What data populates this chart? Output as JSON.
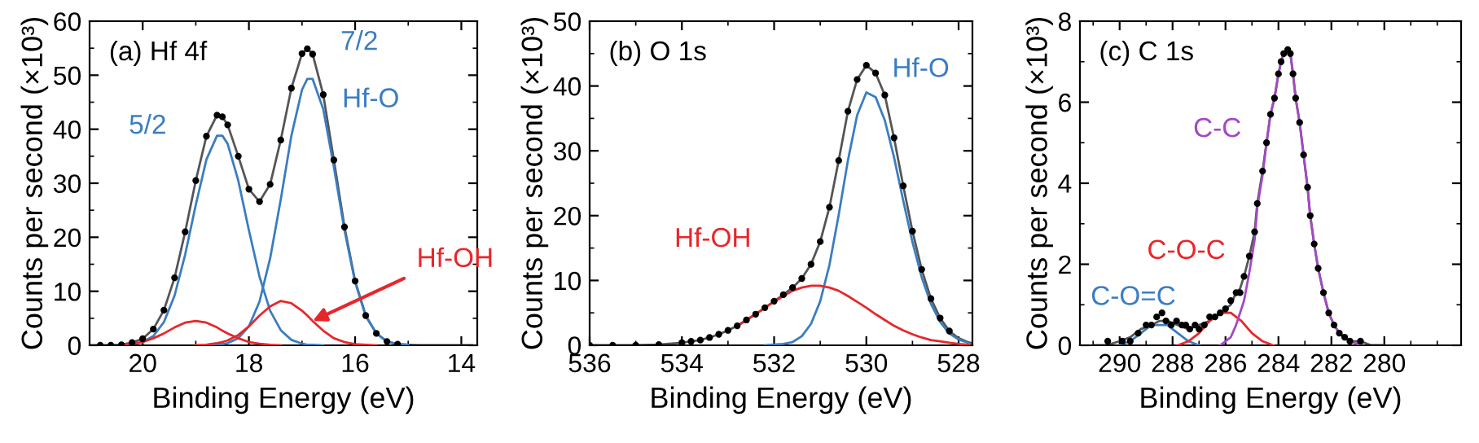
{
  "chart_data": [
    {
      "type": "line",
      "title": "(a) Hf 4f",
      "xlabel": "Binding Energy (eV)",
      "ylabel": "Counts per second (×10³)",
      "xlim": [
        21.0,
        13.7
      ],
      "ylim": [
        0,
        60
      ],
      "xticks": [
        20,
        18,
        16,
        14
      ],
      "yticks": [
        0,
        10,
        20,
        30,
        40,
        50,
        60
      ],
      "grid": false,
      "annotations": [
        {
          "text": "5/2",
          "x": 18.5,
          "y": 38.8
        },
        {
          "text": "7/2",
          "x": 16.9,
          "y": 49.3
        },
        {
          "text": "Hf-O",
          "x": 16.6,
          "y": 43.7
        },
        {
          "text": "Hf-OH",
          "x": 16.8,
          "y": 4.5
        }
      ],
      "series": [
        {
          "color": "#3a7dc1",
          "x": [
            18.8,
            18.6,
            18.5,
            18.4,
            18.2,
            18.0,
            17.8,
            17.6,
            17.4,
            17.2,
            17.0,
            16.9,
            16.8,
            16.6,
            16.4,
            16.2,
            16.0,
            15.8,
            15.6,
            15.4,
            15.2,
            15.0
          ],
          "values": [
            0,
            0.1,
            0.2,
            0.4,
            1.3,
            3.5,
            8.1,
            16.1,
            27.0,
            38.8,
            47.3,
            49.3,
            49.3,
            43.7,
            33.0,
            21.3,
            11.7,
            5.4,
            2.2,
            0.7,
            0.2,
            0.1
          ]
        },
        {
          "color": "#3a7dc1",
          "x": [
            20.2,
            20.0,
            19.8,
            19.6,
            19.4,
            19.2,
            19.0,
            18.8,
            18.6,
            18.5,
            18.4,
            18.2,
            18.0,
            17.8,
            17.6,
            17.4,
            17.2,
            17.0,
            16.9,
            16.8,
            16.6
          ],
          "values": [
            0.2,
            0.6,
            1.7,
            4.3,
            9.2,
            16.8,
            26.0,
            34.4,
            38.8,
            38.8,
            37.3,
            30.5,
            21.3,
            12.7,
            6.4,
            2.8,
            1.0,
            0.3,
            0.1,
            0.1,
            0
          ]
        },
        {
          "color": "#e8262a",
          "x": [
            19.0,
            18.8,
            18.6,
            18.5,
            18.4,
            18.2,
            18.0,
            17.8,
            17.6,
            17.4,
            17.2,
            17.0,
            16.9,
            16.8,
            16.6,
            16.4,
            16.2,
            16.0,
            15.8,
            15.6
          ],
          "values": [
            0,
            0.1,
            0.4,
            0.6,
            0.9,
            1.9,
            3.5,
            5.5,
            7.2,
            8.2,
            7.8,
            6.4,
            5.5,
            4.5,
            2.7,
            1.3,
            0.6,
            0.2,
            0.1,
            0
          ]
        },
        {
          "color": "#e8262a",
          "x": [
            20.4,
            20.2,
            20.0,
            19.8,
            19.6,
            19.4,
            19.2,
            19.0,
            18.8,
            18.6,
            18.5,
            18.4,
            18.2,
            18.0,
            17.8,
            17.6,
            17.4
          ],
          "values": [
            0.1,
            0.3,
            0.6,
            1.3,
            2.2,
            3.3,
            4.2,
            4.5,
            4.2,
            3.3,
            2.7,
            2.2,
            1.3,
            0.6,
            0.3,
            0.1,
            0
          ]
        },
        {
          "color": "#555555",
          "x": [
            21.0,
            20.8,
            20.6,
            20.4,
            20.2,
            20.0,
            19.8,
            19.6,
            19.4,
            19.2,
            19.0,
            18.8,
            18.6,
            18.5,
            18.4,
            18.2,
            18.0,
            17.8,
            17.6,
            17.4,
            17.2,
            17.0,
            16.9,
            16.8,
            16.6,
            16.4,
            16.2,
            16.0,
            15.8,
            15.6,
            15.4,
            15.2,
            15.0,
            14.8,
            14.6,
            14.4,
            14.2,
            14.0,
            13.8
          ],
          "values": [
            0,
            0,
            0,
            0.1,
            0.5,
            1.2,
            3.0,
            6.5,
            12.5,
            21.0,
            30.5,
            38.7,
            42.6,
            42.3,
            40.8,
            35.0,
            28.9,
            26.6,
            29.8,
            38.0,
            47.6,
            54.0,
            54.9,
            53.9,
            46.4,
            34.3,
            21.9,
            11.9,
            5.5,
            2.2,
            0.7,
            0.2,
            0.1,
            0,
            0,
            0,
            0,
            0,
            0
          ]
        },
        {
          "type": "scatter",
          "color": "#000000",
          "marker": "circle",
          "x": [
            20.8,
            20.6,
            20.4,
            20.2,
            20.0,
            19.8,
            19.6,
            19.4,
            19.2,
            19.0,
            18.8,
            18.6,
            18.5,
            18.4,
            18.2,
            18.0,
            17.8,
            17.6,
            17.4,
            17.2,
            17.0,
            16.9,
            16.8,
            16.6,
            16.4,
            16.2,
            16.0,
            15.8,
            15.6,
            15.4,
            15.2
          ],
          "values": [
            0,
            0,
            0.1,
            0.5,
            1.2,
            3.0,
            6.5,
            12.5,
            21.0,
            30.5,
            38.7,
            42.6,
            42.3,
            40.8,
            35.0,
            28.9,
            26.6,
            29.8,
            38.0,
            47.6,
            54.0,
            54.9,
            53.9,
            46.4,
            34.3,
            21.9,
            11.9,
            5.5,
            2.2,
            0.7,
            0.2
          ]
        }
      ]
    },
    {
      "type": "line",
      "title": "(b) O 1s",
      "xlabel": "Binding Energy (eV)",
      "ylabel": "Counts per second (×10³)",
      "xlim": [
        536,
        527.7
      ],
      "ylim": [
        0,
        50
      ],
      "xticks": [
        536,
        534,
        532,
        530,
        528
      ],
      "yticks": [
        0,
        10,
        20,
        30,
        40,
        50
      ],
      "grid": false,
      "annotations": [
        {
          "text": "Hf-O",
          "x": 529.8,
          "y": 38.3
        },
        {
          "text": "Hf-OH",
          "x": 532.2,
          "y": 5.8
        }
      ],
      "series": [
        {
          "color": "#3a7dc1",
          "x": [
            532.2,
            532.0,
            531.8,
            531.6,
            531.4,
            531.2,
            531.0,
            530.8,
            530.6,
            530.4,
            530.2,
            530.0,
            529.8,
            529.6,
            529.4,
            529.2,
            529.0,
            528.8,
            528.6,
            528.4,
            528.2,
            528.0,
            527.8
          ],
          "values": [
            0,
            0.1,
            0.2,
            0.5,
            1.4,
            3.3,
            6.8,
            12.4,
            20.1,
            28.5,
            35.5,
            39.0,
            38.3,
            34.7,
            29.0,
            22.3,
            15.9,
            10.5,
            6.4,
            3.6,
            1.8,
            0.9,
            0.4
          ]
        },
        {
          "color": "#e8262a",
          "x": [
            532.8,
            532.6,
            532.4,
            532.2,
            532.0,
            531.8,
            531.6,
            531.4,
            531.2,
            531.0,
            530.8,
            530.6,
            530.4,
            530.2,
            530.0,
            529.8,
            529.6,
            529.4,
            529.2,
            529.0,
            528.8,
            528.6,
            528.4,
            528.2,
            528.0,
            527.8
          ],
          "values": [
            3.0,
            3.9,
            4.8,
            5.8,
            6.7,
            7.6,
            8.4,
            8.9,
            9.2,
            9.2,
            8.9,
            8.4,
            7.6,
            6.7,
            5.8,
            4.8,
            3.9,
            3.0,
            2.3,
            1.7,
            1.2,
            0.8,
            0.6,
            0.4,
            0.2,
            0.1
          ]
        },
        {
          "color": "#555555",
          "x": [
            536,
            535.5,
            535,
            534.5,
            534,
            533.8,
            533.6,
            533.4,
            533.2,
            533.0,
            532.8,
            532.6,
            532.4,
            532.2,
            532.0,
            531.8,
            531.6,
            531.4,
            531.2,
            531.0,
            530.8,
            530.6,
            530.4,
            530.2,
            530.0,
            529.8,
            529.6,
            529.4,
            529.2,
            529.0,
            528.8,
            528.6,
            528.4,
            528.2,
            528.0,
            527.8,
            527.7
          ],
          "values": [
            0,
            0,
            0,
            0.1,
            0.4,
            0.6,
            0.8,
            1.2,
            1.7,
            2.3,
            3.0,
            3.9,
            4.8,
            5.8,
            6.8,
            7.8,
            8.9,
            10.3,
            12.5,
            16.0,
            21.3,
            28.5,
            36.1,
            41.0,
            43.2,
            42.0,
            38.6,
            32.0,
            24.6,
            17.6,
            11.7,
            7.2,
            4.2,
            2.2,
            1.1,
            0.5,
            0.3
          ]
        },
        {
          "type": "scatter",
          "color": "#000000",
          "marker": "circle",
          "x": [
            536,
            535.5,
            535,
            534.5,
            534,
            533.8,
            533.6,
            533.4,
            533.2,
            533.0,
            532.8,
            532.6,
            532.4,
            532.2,
            532.0,
            531.8,
            531.6,
            531.4,
            531.2,
            531.0,
            530.8,
            530.6,
            530.4,
            530.2,
            530.0,
            529.8,
            529.6,
            529.4,
            529.2,
            529.0,
            528.8,
            528.6,
            528.4,
            528.2
          ],
          "values": [
            0,
            0,
            0,
            0.1,
            0.4,
            0.6,
            0.8,
            1.2,
            1.7,
            2.3,
            3.0,
            3.9,
            4.8,
            5.8,
            6.8,
            7.8,
            8.9,
            10.3,
            12.5,
            16.0,
            21.3,
            28.5,
            36.1,
            41.0,
            43.2,
            42.0,
            38.6,
            32.0,
            24.6,
            17.6,
            11.7,
            7.2,
            4.2,
            2.2
          ]
        }
      ]
    },
    {
      "type": "line",
      "title": "(c) C 1s",
      "xlabel": "Binding Energy (eV)",
      "ylabel": "Counts per second (×10³)",
      "xlim": [
        291.5,
        277.1
      ],
      "ylim": [
        0,
        8
      ],
      "xticks": [
        290,
        288,
        286,
        284,
        282,
        280
      ],
      "yticks": [
        0,
        2,
        4,
        6,
        8
      ],
      "grid": false,
      "annotations": [
        {
          "text": "C-C",
          "x": 284.6,
          "y": 4.2
        },
        {
          "text": "C-O-C",
          "x": 286.2,
          "y": 0.8
        },
        {
          "text": "C-O=C",
          "x": 288.8,
          "y": 0.5
        }
      ],
      "series": [
        {
          "color": "#3a7dc1",
          "x": [
            290.0,
            289.6,
            289.2,
            288.8,
            288.5,
            288.2,
            287.8,
            287.4,
            287.0
          ],
          "values": [
            0,
            0.1,
            0.3,
            0.5,
            0.5,
            0.5,
            0.3,
            0.1,
            0
          ]
        },
        {
          "color": "#e8262a",
          "x": [
            287.8,
            287.4,
            287.0,
            286.6,
            286.2,
            285.8,
            285.4,
            285.0,
            284.6,
            284.2
          ],
          "values": [
            0,
            0.1,
            0.3,
            0.6,
            0.8,
            0.8,
            0.6,
            0.3,
            0.1,
            0
          ]
        },
        {
          "color": "#a349c3",
          "x": [
            286.2,
            286.0,
            285.8,
            285.6,
            285.45,
            285.3,
            285.1,
            284.9,
            284.8,
            284.6,
            284.45,
            284.3,
            284.15,
            284.0,
            283.9,
            283.8,
            283.65,
            283.55,
            283.45,
            283.35,
            283.2,
            283.05,
            282.9,
            282.8,
            282.65,
            282.5,
            282.3,
            282.1,
            281.9,
            281.7,
            281.5,
            281.3,
            280.9
          ],
          "values": [
            0,
            0.1,
            0.2,
            0.5,
            0.8,
            1.1,
            1.8,
            2.6,
            3.4,
            4.2,
            5.0,
            5.7,
            6.1,
            6.7,
            7.0,
            7.2,
            7.3,
            7.2,
            6.7,
            6.1,
            5.5,
            4.7,
            3.9,
            3.2,
            2.5,
            1.9,
            1.3,
            0.8,
            0.5,
            0.3,
            0.2,
            0.1,
            0
          ]
        },
        {
          "color": "#555555",
          "x": [
            291.0,
            290.5,
            290.0,
            289.6,
            289.2,
            288.8,
            288.5,
            288.2,
            287.8,
            287.4,
            287.0,
            286.6,
            286.2,
            285.8,
            285.6,
            285.45,
            285.3,
            285.1,
            284.9,
            284.8,
            284.6,
            284.45,
            284.3,
            284.15,
            284.0,
            283.9,
            283.8,
            283.65,
            283.55,
            283.45,
            283.35,
            283.2,
            283.05,
            282.9,
            282.8,
            282.65,
            282.5,
            282.3,
            282.1,
            281.9,
            281.7,
            281.5,
            281.3,
            280.9,
            280.5,
            280.0
          ],
          "values": [
            0,
            0,
            0.1,
            0.2,
            0.4,
            0.5,
            0.6,
            0.6,
            0.5,
            0.4,
            0.5,
            0.6,
            0.8,
            1.0,
            1.3,
            1.4,
            1.7,
            2.2,
            2.8,
            3.5,
            4.3,
            5.0,
            5.7,
            6.1,
            6.7,
            7.0,
            7.2,
            7.3,
            7.2,
            6.7,
            6.1,
            5.5,
            4.7,
            3.9,
            3.2,
            2.5,
            1.9,
            1.3,
            0.8,
            0.5,
            0.3,
            0.2,
            0.1,
            0.1,
            0,
            0
          ]
        },
        {
          "type": "scatter",
          "color": "#000000",
          "marker": "circle",
          "x": [
            290.45,
            289.9,
            289.6,
            289.3,
            289.0,
            288.8,
            288.6,
            288.4,
            288.25,
            288.05,
            287.85,
            287.65,
            287.5,
            287.35,
            287.15,
            287.0,
            286.8,
            286.6,
            286.4,
            286.2,
            286.0,
            285.8,
            285.6,
            285.45,
            285.3,
            285.1,
            284.9,
            284.8,
            284.6,
            284.45,
            284.3,
            284.15,
            284.0,
            283.9,
            283.8,
            283.65,
            283.55,
            283.45,
            283.35,
            283.2,
            283.05,
            282.9,
            282.8,
            282.65,
            282.5,
            282.3,
            282.1,
            281.9,
            281.7,
            281.5,
            281.3,
            280.9
          ],
          "values": [
            0.1,
            0.1,
            0.1,
            0.3,
            0.5,
            0.5,
            0.7,
            0.8,
            0.6,
            0.5,
            0.6,
            0.5,
            0.5,
            0.4,
            0.5,
            0.4,
            0.5,
            0.7,
            0.7,
            0.8,
            0.9,
            1.1,
            1.3,
            1.3,
            1.7,
            2.2,
            2.8,
            3.5,
            4.3,
            5.0,
            5.7,
            6.1,
            6.7,
            7.0,
            7.2,
            7.3,
            7.2,
            6.7,
            6.1,
            5.5,
            4.7,
            3.9,
            3.2,
            2.5,
            1.9,
            1.3,
            0.8,
            0.5,
            0.3,
            0.2,
            0.1,
            0.1
          ]
        }
      ]
    }
  ]
}
